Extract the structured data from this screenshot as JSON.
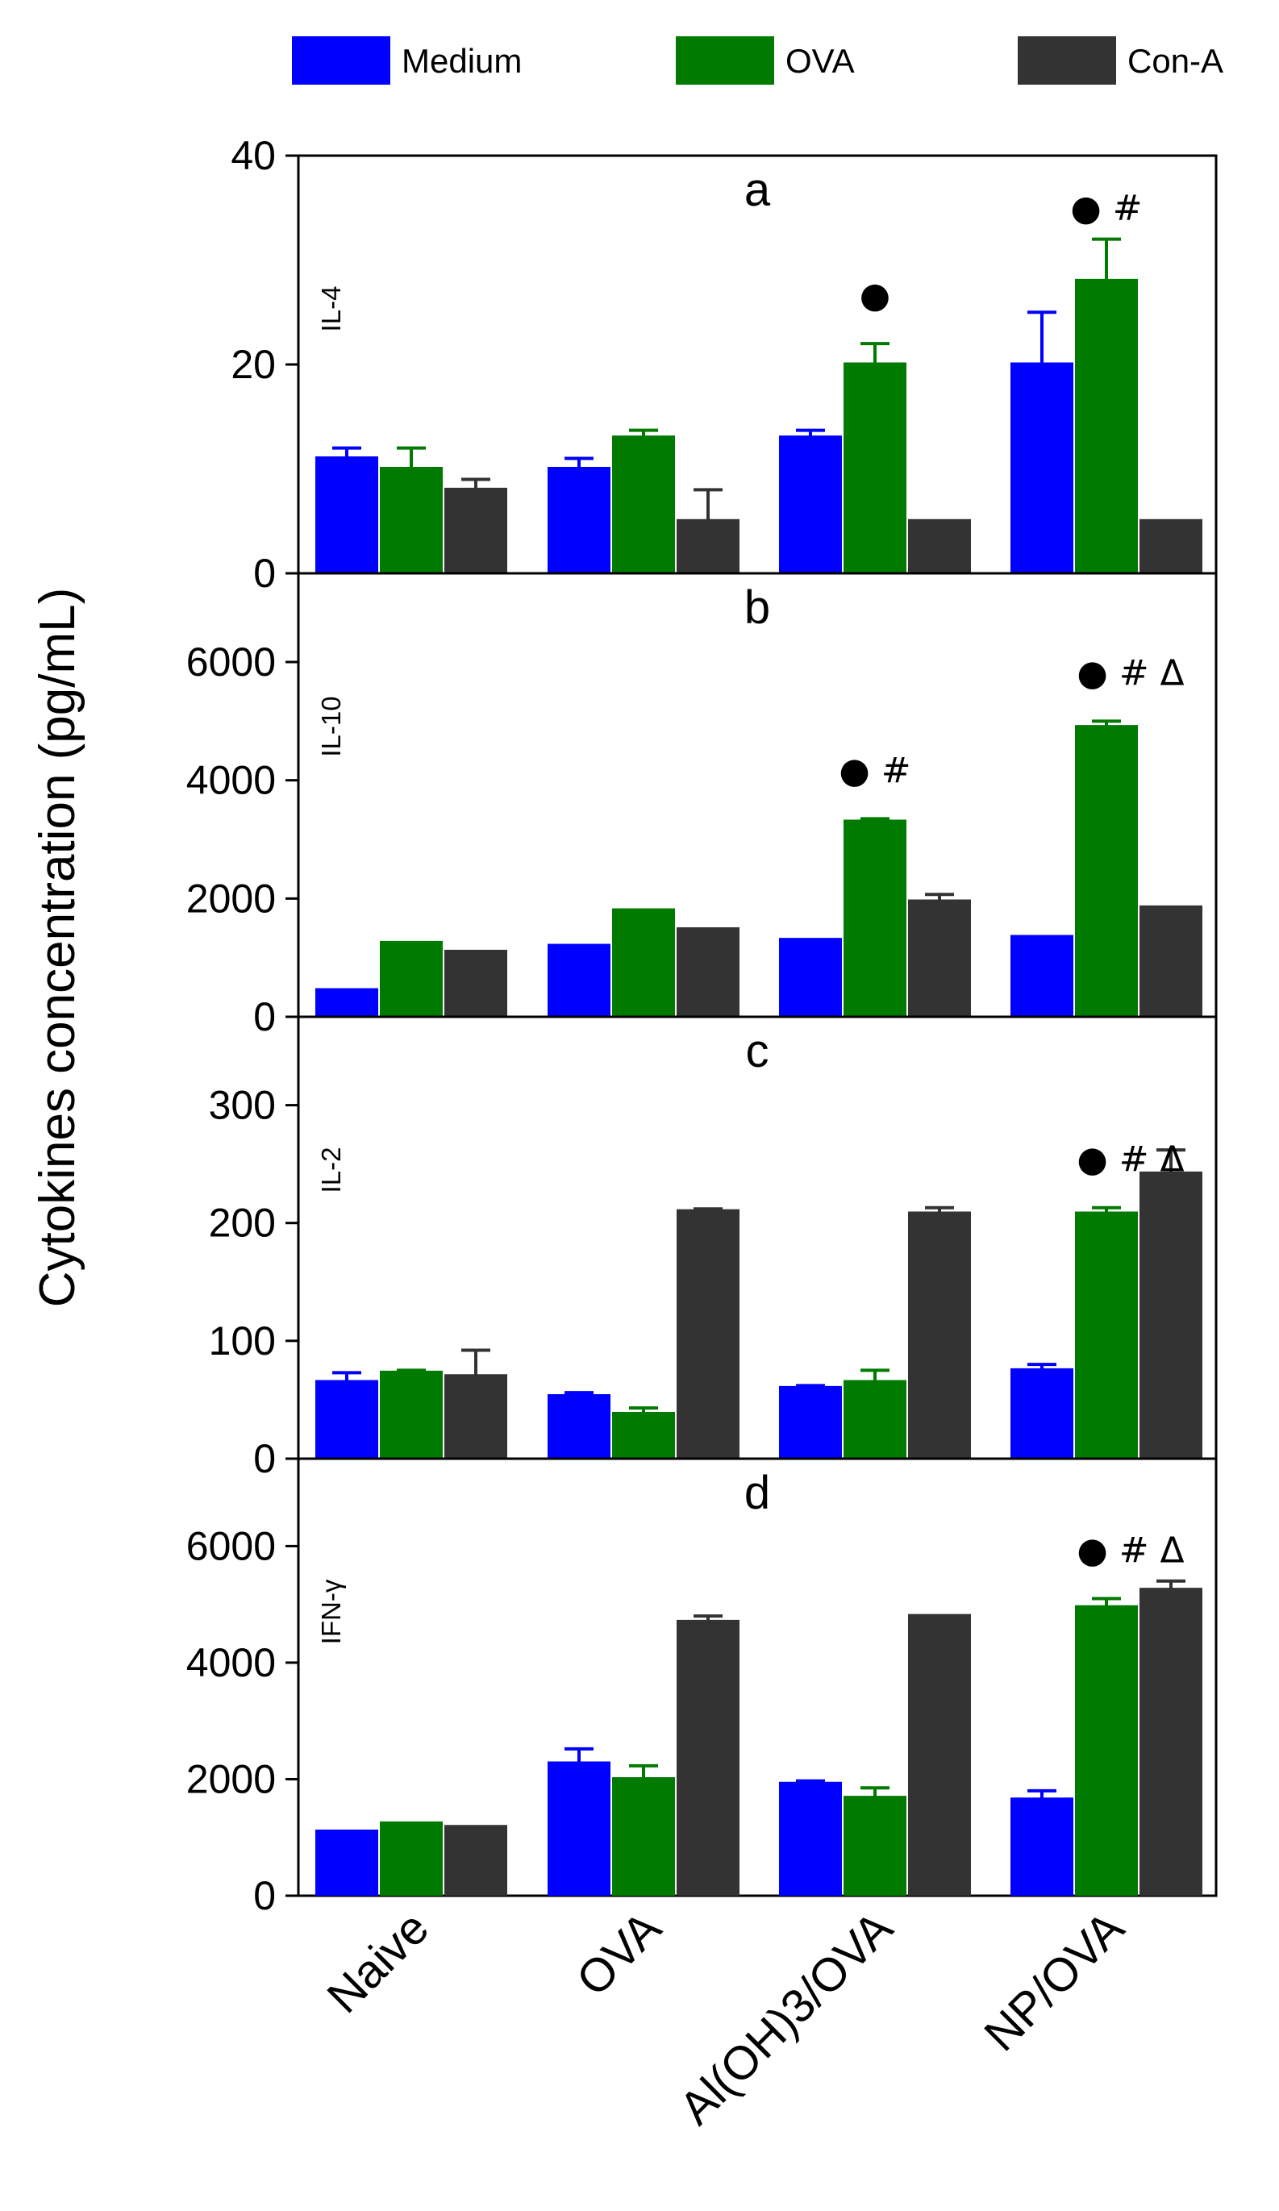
{
  "chart_data": {
    "type": "bar",
    "ylabel": "Cytokines concentration (pg/mL)",
    "categories": [
      "Naive",
      "OVA",
      "Al(OH)3/OVA",
      "NP/OVA"
    ],
    "series_names": [
      "Medium",
      "OVA",
      "Con-A"
    ],
    "colors": [
      "#0000ff",
      "#007a00",
      "#333333"
    ],
    "legend": [
      {
        "label": "Medium",
        "color": "#0000ff"
      },
      {
        "label": "OVA",
        "color": "#007a00"
      },
      {
        "label": "Con-A",
        "color": "#333333"
      }
    ],
    "panels": [
      {
        "letter": "a",
        "cytokine": "IL-4",
        "ylim": [
          0,
          40
        ],
        "yticks": [
          0,
          20,
          40
        ],
        "series": [
          {
            "name": "Medium",
            "values": [
              11,
              10,
              13,
              20
            ],
            "errors": [
              1,
              1,
              0.7,
              5
            ]
          },
          {
            "name": "OVA",
            "values": [
              10,
              13,
              20,
              28
            ],
            "errors": [
              2,
              0.7,
              2,
              4
            ]
          },
          {
            "name": "Con-A",
            "values": [
              8,
              5,
              5,
              5
            ],
            "errors": [
              1,
              3,
              0,
              0
            ]
          }
        ],
        "annotations": [
          {
            "category": "Al(OH)3/OVA",
            "text": "●"
          },
          {
            "category": "NP/OVA",
            "text": "● #"
          }
        ]
      },
      {
        "letter": "b",
        "cytokine": "IL-10",
        "ylim": [
          0,
          7500
        ],
        "yticks": [
          0,
          2000,
          4000,
          6000
        ],
        "series": [
          {
            "name": "Medium",
            "values": [
              450,
              1200,
              1300,
              1350
            ],
            "errors": [
              0,
              0,
              0,
              0
            ]
          },
          {
            "name": "OVA",
            "values": [
              1250,
              1800,
              3300,
              4900
            ],
            "errors": [
              0,
              0,
              50,
              100
            ]
          },
          {
            "name": "Con-A",
            "values": [
              1100,
              1480,
              1950,
              1850
            ],
            "errors": [
              0,
              0,
              120,
              0
            ]
          }
        ],
        "annotations": [
          {
            "category": "Al(OH)3/OVA",
            "text": "● #"
          },
          {
            "category": "NP/OVA",
            "text": "● # Δ"
          }
        ]
      },
      {
        "letter": "c",
        "cytokine": "IL-2",
        "ylim": [
          0,
          375
        ],
        "yticks": [
          0,
          100,
          200,
          300
        ],
        "series": [
          {
            "name": "Medium",
            "values": [
              65,
              53,
              60,
              75
            ],
            "errors": [
              8,
              3,
              2,
              5
            ]
          },
          {
            "name": "OVA",
            "values": [
              73,
              38,
              65,
              208
            ],
            "errors": [
              2,
              5,
              10,
              5
            ]
          },
          {
            "name": "Con-A",
            "values": [
              70,
              210,
              208,
              242
            ],
            "errors": [
              22,
              2,
              5,
              20
            ]
          }
        ],
        "annotations": [
          {
            "category": "NP/OVA",
            "text": "● # Δ"
          }
        ]
      },
      {
        "letter": "d",
        "cytokine": "IFN-γ",
        "ylim": [
          0,
          7500
        ],
        "yticks": [
          0,
          2000,
          4000,
          6000
        ],
        "series": [
          {
            "name": "Medium",
            "values": [
              1100,
              2270,
              1920,
              1650
            ],
            "errors": [
              0,
              250,
              50,
              150
            ]
          },
          {
            "name": "OVA",
            "values": [
              1240,
              2000,
              1680,
              4950
            ],
            "errors": [
              0,
              230,
              170,
              150
            ]
          },
          {
            "name": "Con-A",
            "values": [
              1180,
              4700,
              4800,
              5250
            ],
            "errors": [
              0,
              100,
              0,
              150
            ]
          }
        ],
        "annotations": [
          {
            "category": "NP/OVA",
            "text": "● # Δ"
          }
        ]
      }
    ]
  }
}
